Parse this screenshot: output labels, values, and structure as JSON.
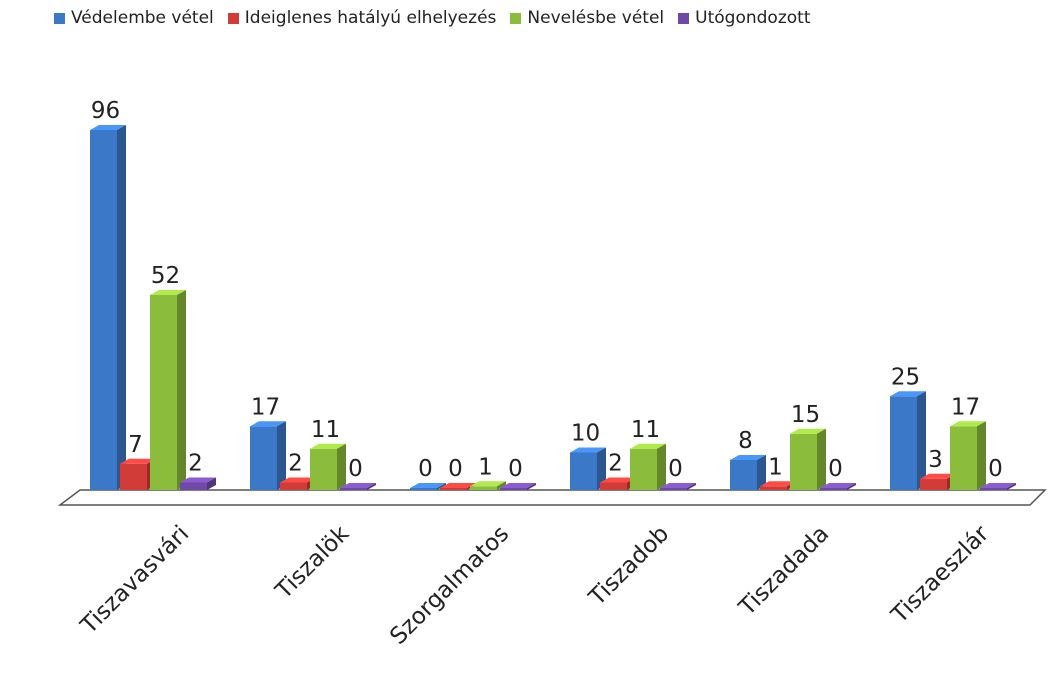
{
  "chart_data": {
    "type": "bar",
    "title": "",
    "xlabel": "",
    "ylabel": "",
    "ylim": [
      0,
      96
    ],
    "grid": false,
    "legend_position": "top",
    "categories": [
      "Tiszavasvári",
      "Tiszalök",
      "Szorgalmatos",
      "Tiszadob",
      "Tiszadada",
      "Tiszaeszlár"
    ],
    "series": [
      {
        "name": "Védelembe vétel",
        "color": "#3c78c8",
        "values": [
          96,
          17,
          0,
          10,
          8,
          25
        ]
      },
      {
        "name": "Ideiglenes hatályú elhelyezés",
        "color": "#d23c38",
        "values": [
          7,
          2,
          0,
          2,
          1,
          3
        ]
      },
      {
        "name": "Nevelésbe vétel",
        "color": "#8cbc3c",
        "values": [
          52,
          11,
          1,
          11,
          15,
          17
        ]
      },
      {
        "name": "Utógondozott",
        "color": "#7048a8",
        "values": [
          2,
          0,
          0,
          0,
          0,
          0
        ]
      }
    ]
  }
}
